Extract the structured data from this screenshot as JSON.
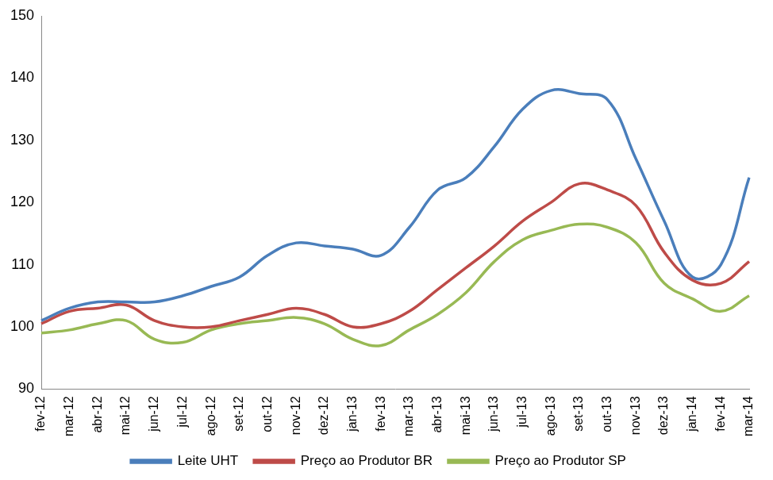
{
  "chart_data": {
    "type": "line",
    "categories": [
      "fev-12",
      "mar-12",
      "abr-12",
      "mai-12",
      "jun-12",
      "jul-12",
      "ago-12",
      "set-12",
      "out-12",
      "nov-12",
      "dez-12",
      "jan-13",
      "fev-13",
      "mar-13",
      "abr-13",
      "mai-13",
      "jun-13",
      "jul-13",
      "ago-13",
      "set-13",
      "out-13",
      "nov-13",
      "dez-13",
      "jan-14",
      "fev-14",
      "mar-14"
    ],
    "series": [
      {
        "name": "Leite UHT",
        "color": "#4a7ebb",
        "values": [
          101,
          103,
          104,
          104,
          104,
          105,
          106.5,
          108,
          111.5,
          113.5,
          113,
          112.5,
          111.5,
          116,
          122,
          124,
          129,
          135,
          138,
          137.5,
          136.5,
          127,
          117,
          108,
          110,
          124
        ]
      },
      {
        "name": "Preço ao Produtor BR",
        "color": "#be4b48",
        "values": [
          100.5,
          102.5,
          103,
          103.5,
          101,
          100,
          100,
          101,
          102,
          103,
          102,
          100,
          100.5,
          102.5,
          106,
          109.5,
          113,
          117,
          120,
          123,
          122,
          119.5,
          112,
          107.5,
          107,
          110.5
        ]
      },
      {
        "name": "Preço ao Produtor SP",
        "color": "#98b954",
        "values": [
          99,
          99.5,
          100.5,
          101,
          98,
          97.5,
          99.5,
          100.5,
          101,
          101.5,
          100.5,
          98,
          97,
          99.5,
          102,
          105.5,
          110.5,
          114,
          115.5,
          116.5,
          116,
          113.5,
          107,
          104.5,
          102.5,
          105
        ]
      }
    ],
    "ylim": [
      90,
      150
    ],
    "yticks": [
      90,
      100,
      110,
      120,
      130,
      140,
      150
    ],
    "grid": false,
    "legend": "bottom",
    "marker": "none",
    "line_style": "solid"
  }
}
